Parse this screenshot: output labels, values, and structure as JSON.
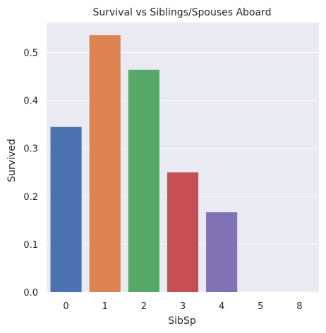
{
  "chart_data": {
    "type": "bar",
    "title": "Survival vs Siblings/Spouses Aboard",
    "xlabel": "SibSp",
    "ylabel": "Survived",
    "categories": [
      "0",
      "1",
      "2",
      "3",
      "4",
      "5",
      "8"
    ],
    "values": [
      0.345,
      0.536,
      0.464,
      0.25,
      0.167,
      0.0,
      0.0
    ],
    "colors": [
      "#4c72b0",
      "#dd8452",
      "#55a868",
      "#c44e52",
      "#8172b3",
      "#937860",
      "#da8bc3"
    ],
    "yticks": [
      "0.0",
      "0.1",
      "0.2",
      "0.3",
      "0.4",
      "0.5"
    ],
    "ylim": [
      0,
      0.5625
    ],
    "grid": true,
    "background": "#eaeaf2",
    "grid_color": "#ffffff"
  }
}
